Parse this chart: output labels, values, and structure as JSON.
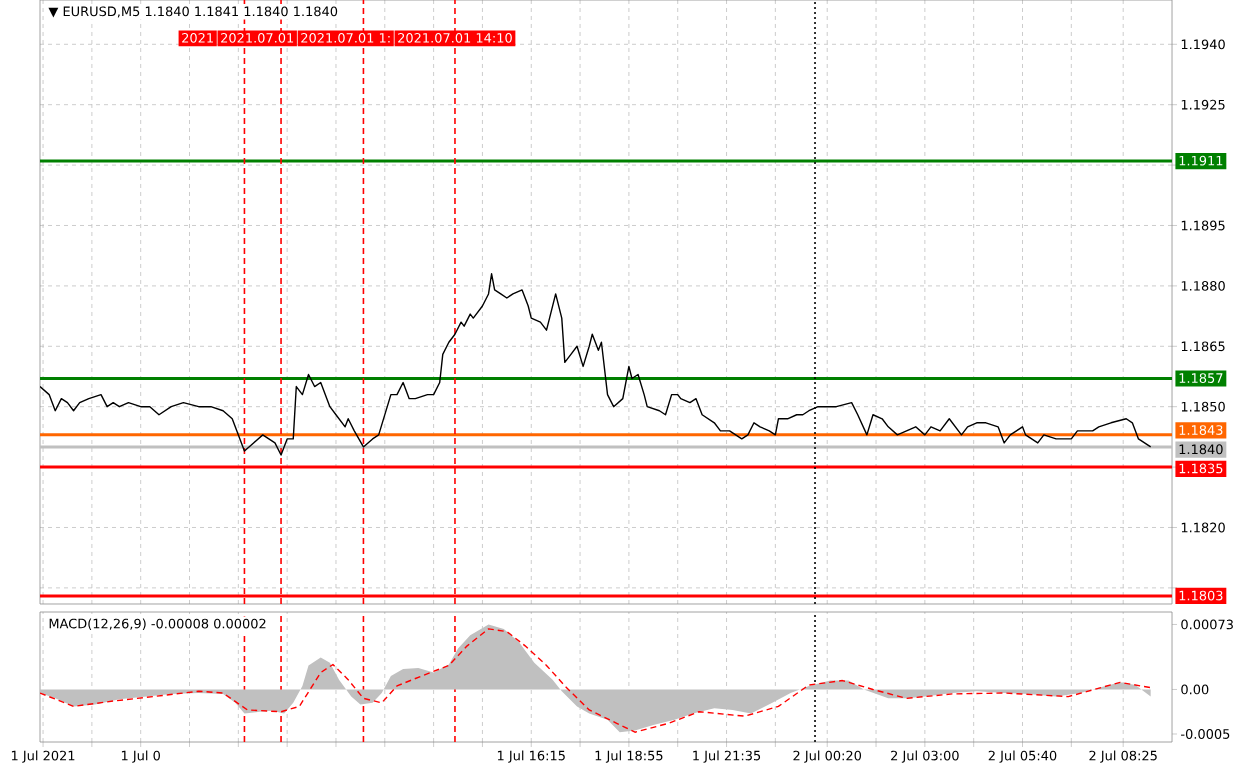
{
  "chart_data": [
    {
      "type": "line",
      "title": "▼ EURUSD,M5 1.1840 1.1841 1.1840 1.1840",
      "xlim": [
        "2021-07-01T02:50",
        "2021-07-02T09:45"
      ],
      "xticks": [
        {
          "value": "2021-07-01T02:55",
          "label": null
        },
        {
          "value": "2021-07-01T04:15",
          "label": null
        },
        {
          "value": "2021-07-01T05:35",
          "label": null
        },
        {
          "value": "2021-07-01T06:55",
          "label": null
        },
        {
          "value": "2021-07-01T08:15",
          "label": null
        },
        {
          "value": "2021-07-01T09:35",
          "label": null
        },
        {
          "value": "2021-07-01T10:55",
          "label": null
        },
        {
          "value": "2021-07-01T12:15",
          "label": null
        },
        {
          "value": "2021-07-01T13:35",
          "label": null
        },
        {
          "value": "2021-07-01T14:55",
          "label": null
        },
        {
          "value": "2021-07-01T16:15",
          "label": null
        },
        {
          "value": "2021-07-01T17:35",
          "label": null
        },
        {
          "value": "2021-07-01T18:55",
          "label": null
        },
        {
          "value": "2021-07-01T20:15",
          "label": null
        },
        {
          "value": "2021-07-01T21:35",
          "label": null
        },
        {
          "value": "2021-07-01T22:55",
          "label": null
        },
        {
          "value": "2021-07-02T00:20",
          "label": null
        },
        {
          "value": "2021-07-02T01:40",
          "label": null
        },
        {
          "value": "2021-07-02T03:00",
          "label": null
        },
        {
          "value": "2021-07-02T04:20",
          "label": null
        },
        {
          "value": "2021-07-02T05:40",
          "label": null
        },
        {
          "value": "2021-07-02T07:00",
          "label": null
        },
        {
          "value": "2021-07-02T08:25",
          "label": null
        }
      ],
      "ylim": [
        1.1801,
        1.1951
      ],
      "yticks": [
        {
          "value": 1.194,
          "label": "1.1940"
        },
        1.1925,
        {
          "value": 1.191,
          "label": null
        },
        1.1895,
        {
          "value": 1.188,
          "label": "1.1880"
        },
        1.1865,
        {
          "value": 1.185,
          "label": "1.1850"
        },
        {
          "value": 1.1835,
          "label": null
        },
        {
          "value": 1.182,
          "label": "1.1820"
        },
        {
          "value": 1.1805,
          "label": null
        }
      ],
      "grid": true,
      "tick_labels": "y",
      "x": [
        "2021-07-01T02:50",
        "2021-07-01T03:05",
        "2021-07-01T03:15",
        "2021-07-01T03:25",
        "2021-07-01T03:35",
        "2021-07-01T03:45",
        "2021-07-01T03:55",
        "2021-07-01T04:10",
        "2021-07-01T04:30",
        "2021-07-01T04:40",
        "2021-07-01T04:50",
        "2021-07-01T05:00",
        "2021-07-01T05:15",
        "2021-07-01T05:35",
        "2021-07-01T05:50",
        "2021-07-01T06:05",
        "2021-07-01T06:25",
        "2021-07-01T06:45",
        "2021-07-01T07:10",
        "2021-07-01T07:30",
        "2021-07-01T07:50",
        "2021-07-01T08:05",
        "2021-07-01T08:25",
        "2021-07-01T08:40",
        "2021-07-01T08:55",
        "2021-07-01T09:05",
        "2021-07-01T09:15",
        "2021-07-01T09:25",
        "2021-07-01T09:35",
        "2021-07-01T09:45",
        "2021-07-01T09:50",
        "2021-07-01T10:00",
        "2021-07-01T10:10",
        "2021-07-01T10:20",
        "2021-07-01T10:30",
        "2021-07-01T10:45",
        "2021-07-01T10:55",
        "2021-07-01T11:10",
        "2021-07-01T11:15",
        "2021-07-01T11:25",
        "2021-07-01T11:40",
        "2021-07-01T11:55",
        "2021-07-01T12:05",
        "2021-07-01T12:15",
        "2021-07-01T12:25",
        "2021-07-01T12:35",
        "2021-07-01T12:45",
        "2021-07-01T12:55",
        "2021-07-01T13:05",
        "2021-07-01T13:25",
        "2021-07-01T13:35",
        "2021-07-01T13:45",
        "2021-07-01T13:50",
        "2021-07-01T14:00",
        "2021-07-01T14:10",
        "2021-07-01T14:20",
        "2021-07-01T14:25",
        "2021-07-01T14:35",
        "2021-07-01T14:40",
        "2021-07-01T14:55",
        "2021-07-01T15:05",
        "2021-07-01T15:10",
        "2021-07-01T15:15",
        "2021-07-01T15:25",
        "2021-07-01T15:35",
        "2021-07-01T15:45",
        "2021-07-01T16:00",
        "2021-07-01T16:10",
        "2021-07-01T16:15",
        "2021-07-01T16:30",
        "2021-07-01T16:40",
        "2021-07-01T16:45",
        "2021-07-01T16:55",
        "2021-07-01T17:05",
        "2021-07-01T17:10",
        "2021-07-01T17:20",
        "2021-07-01T17:30",
        "2021-07-01T17:40",
        "2021-07-01T17:50",
        "2021-07-01T17:55",
        "2021-07-01T18:05",
        "2021-07-01T18:10",
        "2021-07-01T18:20",
        "2021-07-01T18:30",
        "2021-07-01T18:45",
        "2021-07-01T18:55",
        "2021-07-01T19:00",
        "2021-07-01T19:10",
        "2021-07-01T19:20",
        "2021-07-01T19:25",
        "2021-07-01T19:45",
        "2021-07-01T19:55",
        "2021-07-01T20:05",
        "2021-07-01T20:15",
        "2021-07-01T20:20",
        "2021-07-01T20:35",
        "2021-07-01T20:45",
        "2021-07-01T20:55",
        "2021-07-01T21:15",
        "2021-07-01T21:25",
        "2021-07-01T21:40",
        "2021-07-01T21:50",
        "2021-07-01T22:00",
        "2021-07-01T22:10",
        "2021-07-01T22:20",
        "2021-07-01T22:30",
        "2021-07-01T22:45",
        "2021-07-01T22:55",
        "2021-07-01T23:00",
        "2021-07-01T23:15",
        "2021-07-01T23:30",
        "2021-07-01T23:40",
        "2021-07-01T23:50",
        "2021-07-02T00:05",
        "2021-07-02T00:20",
        "2021-07-02T00:35",
        "2021-07-02T01:00",
        "2021-07-02T01:10",
        "2021-07-02T01:25",
        "2021-07-02T01:35",
        "2021-07-02T01:50",
        "2021-07-02T02:00",
        "2021-07-02T02:15",
        "2021-07-02T02:30",
        "2021-07-02T02:45",
        "2021-07-02T03:00",
        "2021-07-02T03:10",
        "2021-07-02T03:25",
        "2021-07-02T03:40",
        "2021-07-02T04:00",
        "2021-07-02T04:10",
        "2021-07-02T04:25",
        "2021-07-02T04:40",
        "2021-07-02T05:00",
        "2021-07-02T05:10",
        "2021-07-02T05:20",
        "2021-07-02T05:40",
        "2021-07-02T05:45",
        "2021-07-02T06:05",
        "2021-07-02T06:15",
        "2021-07-02T06:35",
        "2021-07-02T07:00",
        "2021-07-02T07:10",
        "2021-07-02T07:35",
        "2021-07-02T07:45",
        "2021-07-02T08:05",
        "2021-07-02T08:30",
        "2021-07-02T08:40",
        "2021-07-02T08:50",
        "2021-07-02T09:00",
        "2021-07-02T09:10"
      ],
      "series": [
        {
          "color": "#000000",
          "values": [
            1.1855,
            1.1853,
            1.1849,
            1.1852,
            1.1851,
            1.1849,
            1.1851,
            1.1852,
            1.1853,
            1.185,
            1.1851,
            1.185,
            1.1851,
            1.185,
            1.185,
            1.1848,
            1.185,
            1.1851,
            1.185,
            1.185,
            1.1849,
            1.1847,
            1.1839,
            1.1841,
            1.1843,
            1.1842,
            1.1841,
            1.1838,
            1.1842,
            1.1842,
            1.1855,
            1.1853,
            1.1858,
            1.1855,
            1.1856,
            1.185,
            1.1848,
            1.1845,
            1.1847,
            1.1844,
            1.184,
            1.1842,
            1.1843,
            1.1848,
            1.1853,
            1.1853,
            1.1856,
            1.1852,
            1.1852,
            1.1853,
            1.1853,
            1.1856,
            1.1863,
            1.1866,
            1.1868,
            1.1871,
            1.187,
            1.1873,
            1.1872,
            1.1875,
            1.1878,
            1.1883,
            1.1879,
            1.1878,
            1.1877,
            1.1878,
            1.1879,
            1.1875,
            1.1872,
            1.1871,
            1.1869,
            1.1872,
            1.1878,
            1.1872,
            1.1861,
            1.1863,
            1.1865,
            1.186,
            1.1865,
            1.1868,
            1.1864,
            1.1866,
            1.1853,
            1.185,
            1.1852,
            1.186,
            1.1857,
            1.1858,
            1.1853,
            1.185,
            1.1849,
            1.1848,
            1.1853,
            1.1853,
            1.1852,
            1.1851,
            1.1852,
            1.1848,
            1.1846,
            1.1844,
            1.1844,
            1.1843,
            1.1842,
            1.1843,
            1.1846,
            1.1845,
            1.1844,
            1.1843,
            1.1847,
            1.1847,
            1.1848,
            1.1848,
            1.1849,
            1.185,
            1.185,
            1.185,
            1.1851,
            1.1848,
            1.1843,
            1.1848,
            1.1847,
            1.1845,
            1.1843,
            1.1844,
            1.1845,
            1.1843,
            1.1845,
            1.1844,
            1.1847,
            1.1843,
            1.1845,
            1.1846,
            1.1846,
            1.1845,
            1.1841,
            1.1843,
            1.1845,
            1.1843,
            1.1841,
            1.1843,
            1.1842,
            1.1842,
            1.1844,
            1.1844,
            1.1845,
            1.1846,
            1.1847,
            1.1846,
            1.1842,
            1.1841,
            1.184
          ]
        }
      ],
      "ref_lines": [
        {
          "axis": "y",
          "value": 1.1911,
          "label": "1.1911",
          "color": "#008000"
        },
        {
          "axis": "y",
          "value": 1.1857,
          "label": "1.1857",
          "color": "#008000"
        },
        {
          "axis": "y",
          "value": 1.1843,
          "label": "1.1843",
          "color": "#ff6600"
        },
        {
          "axis": "y",
          "value": 1.184,
          "label": "1.1840",
          "color": "#c0c0c0"
        },
        {
          "axis": "y",
          "value": 1.1835,
          "label": "1.1835",
          "color": "#ff0000"
        },
        {
          "axis": "y",
          "value": 1.1803,
          "label": "1.1803",
          "color": "#ff0000"
        },
        {
          "axis": "x",
          "value": "2021-07-01T08:25",
          "label": "2021",
          "color": "#ff0000",
          "line_style": "dashed"
        },
        {
          "axis": "x",
          "value": "2021-07-01T09:25",
          "label": "2021.07.01",
          "color": "#ff0000",
          "line_style": "dashed"
        },
        {
          "axis": "x",
          "value": "2021-07-01T11:40",
          "label": "2021.07.01 1:",
          "color": "#ff0000",
          "line_style": "dashed"
        },
        {
          "axis": "x",
          "value": "2021-07-01T14:10",
          "label": "2021.07.01 14:10",
          "color": "#ff0000",
          "line_style": "dashed"
        },
        {
          "axis": "x",
          "value": "2021-07-02T00:00",
          "color": "#000000",
          "line_style": "dotted"
        }
      ]
    },
    {
      "type": "area",
      "title": "MACD(12,26,9) -0.00008 0.00002",
      "xlim": [
        "2021-07-01T02:50",
        "2021-07-02T09:45"
      ],
      "xticks": [
        {
          "value": "2021-07-01T02:55",
          "label": "1 Jul 2021"
        },
        {
          "value": "2021-07-01T04:15",
          "label": null
        },
        {
          "value": "2021-07-01T05:35",
          "label": "1 Jul 0"
        },
        {
          "value": "2021-07-01T06:55",
          "label": null
        },
        {
          "value": "2021-07-01T08:15",
          "label": null
        },
        {
          "value": "2021-07-01T09:35",
          "label": null
        },
        {
          "value": "2021-07-01T10:55",
          "label": null
        },
        {
          "value": "2021-07-01T12:15",
          "label": null
        },
        {
          "value": "2021-07-01T13:35",
          "label": null
        },
        {
          "value": "2021-07-01T14:55",
          "label": null
        },
        {
          "value": "2021-07-01T16:15",
          "label": "1 Jul 16:15"
        },
        {
          "value": "2021-07-01T17:35",
          "label": null
        },
        {
          "value": "2021-07-01T18:55",
          "label": "1 Jul 18:55"
        },
        {
          "value": "2021-07-01T20:15",
          "label": null
        },
        {
          "value": "2021-07-01T21:35",
          "label": "1 Jul 21:35"
        },
        {
          "value": "2021-07-01T22:55",
          "label": null
        },
        {
          "value": "2021-07-02T00:20",
          "label": "2 Jul 00:20"
        },
        {
          "value": "2021-07-02T01:40",
          "label": null
        },
        {
          "value": "2021-07-02T03:00",
          "label": "2 Jul 03:00"
        },
        {
          "value": "2021-07-02T04:20",
          "label": null
        },
        {
          "value": "2021-07-02T05:40",
          "label": "2 Jul 05:40"
        },
        {
          "value": "2021-07-02T07:00",
          "label": null
        },
        {
          "value": "2021-07-02T08:25",
          "label": "2 Jul 08:25"
        }
      ],
      "ylim": [
        -0.00059,
        0.00087
      ],
      "yticks": [
        0.00073,
        {
          "value": 0,
          "label": "0.00"
        },
        -0.0005
      ],
      "grid": "x",
      "series": [
        {
          "color": "#c0c0c0",
          "x": [
            "2021-07-01T02:50",
            "2021-07-01T03:15",
            "2021-07-01T03:45",
            "2021-07-01T04:20",
            "2021-07-01T05:00",
            "2021-07-01T05:45",
            "2021-07-01T06:25",
            "2021-07-01T07:10",
            "2021-07-01T07:50",
            "2021-07-01T08:10",
            "2021-07-01T08:25",
            "2021-07-01T08:50",
            "2021-07-01T09:10",
            "2021-07-01T09:30",
            "2021-07-01T09:45",
            "2021-07-01T10:00",
            "2021-07-01T10:10",
            "2021-07-01T10:30",
            "2021-07-01T10:45",
            "2021-07-01T11:00",
            "2021-07-01T11:20",
            "2021-07-01T11:35",
            "2021-07-01T11:55",
            "2021-07-01T12:10",
            "2021-07-01T12:25",
            "2021-07-01T12:45",
            "2021-07-01T13:10",
            "2021-07-01T13:35",
            "2021-07-01T14:00",
            "2021-07-01T14:15",
            "2021-07-01T14:35",
            "2021-07-01T15:05",
            "2021-07-01T15:30",
            "2021-07-01T15:55",
            "2021-07-01T16:20",
            "2021-07-01T16:50",
            "2021-07-01T17:05",
            "2021-07-01T17:30",
            "2021-07-01T17:50",
            "2021-07-01T18:20",
            "2021-07-01T18:40",
            "2021-07-01T19:05",
            "2021-07-01T19:35",
            "2021-07-01T20:10",
            "2021-07-01T20:40",
            "2021-07-01T21:15",
            "2021-07-01T21:45",
            "2021-07-01T22:15",
            "2021-07-01T22:50",
            "2021-07-01T23:20",
            "2021-07-01T23:50",
            "2021-07-02T00:25",
            "2021-07-02T00:55",
            "2021-07-02T01:20",
            "2021-07-02T02:00",
            "2021-07-02T02:30",
            "2021-07-02T03:00",
            "2021-07-02T03:45",
            "2021-07-02T04:25",
            "2021-07-02T05:10",
            "2021-07-02T05:50",
            "2021-07-02T06:35",
            "2021-07-02T07:15",
            "2021-07-02T07:45",
            "2021-07-02T08:20",
            "2021-07-02T08:45",
            "2021-07-02T09:10"
          ],
          "values": [
            -4e-05,
            -0.0001,
            -0.00019,
            -0.00017,
            -0.00011,
            -8e-05,
            -5e-05,
            -4e-05,
            -5e-05,
            -0.00015,
            -0.00027,
            -0.00025,
            -0.00024,
            -0.00027,
            -0.00015,
            4e-05,
            0.00027,
            0.00036,
            0.0003,
            0.00011,
            -8e-05,
            -0.00017,
            -0.00015,
            -4e-05,
            0.00015,
            0.00023,
            0.00024,
            0.00019,
            0.00028,
            0.00046,
            0.00061,
            0.00073,
            0.00068,
            0.00053,
            0.0003,
            0.00011,
            -2e-05,
            -0.00019,
            -0.00027,
            -0.00034,
            -0.00048,
            -0.00046,
            -0.0004,
            -0.00034,
            -0.00027,
            -0.00021,
            -0.00023,
            -0.00027,
            -0.00015,
            -4e-05,
            4e-05,
            0.0001,
            0.0001,
            0,
            -0.0001,
            -0.0001,
            -8e-05,
            -4e-05,
            -2e-05,
            -4e-05,
            -5e-05,
            -8e-05,
            -4e-05,
            2e-05,
            8e-05,
            5e-05,
            -8e-05
          ]
        },
        {
          "type": "line",
          "color": "#ff0000",
          "line_style": "dashed",
          "x": [
            "2021-07-01T02:50",
            "2021-07-01T03:45",
            "2021-07-01T04:50",
            "2021-07-01T05:55",
            "2021-07-01T07:10",
            "2021-07-01T07:50",
            "2021-07-01T08:30",
            "2021-07-01T09:25",
            "2021-07-01T09:55",
            "2021-07-01T10:30",
            "2021-07-01T10:50",
            "2021-07-01T11:15",
            "2021-07-01T11:40",
            "2021-07-01T12:10",
            "2021-07-01T12:35",
            "2021-07-01T13:15",
            "2021-07-01T14:00",
            "2021-07-01T14:30",
            "2021-07-01T15:05",
            "2021-07-01T15:35",
            "2021-07-01T16:05",
            "2021-07-01T16:40",
            "2021-07-01T17:10",
            "2021-07-01T17:50",
            "2021-07-01T18:35",
            "2021-07-01T19:05",
            "2021-07-01T20:00",
            "2021-07-01T20:50",
            "2021-07-01T22:05",
            "2021-07-01T23:00",
            "2021-07-01T23:50",
            "2021-07-02T00:45",
            "2021-07-02T01:35",
            "2021-07-02T02:30",
            "2021-07-02T03:45",
            "2021-07-02T05:10",
            "2021-07-02T06:55",
            "2021-07-02T08:20",
            "2021-07-02T09:10"
          ],
          "values": [
            -4e-05,
            -0.00019,
            -0.00013,
            -8e-05,
            -2e-05,
            -4e-05,
            -0.00023,
            -0.00025,
            -0.00019,
            0.00019,
            0.00028,
            0.00011,
            -0.0001,
            -0.00015,
            4e-05,
            0.00015,
            0.00027,
            0.00049,
            0.00068,
            0.00065,
            0.00049,
            0.00027,
            4e-05,
            -0.00023,
            -0.00038,
            -0.00048,
            -0.00038,
            -0.00025,
            -0.0003,
            -0.00019,
            5e-05,
            0.0001,
            0,
            -0.0001,
            -5e-05,
            -4e-05,
            -8e-05,
            8e-05,
            2e-05
          ]
        }
      ],
      "ref_lines": [
        {
          "axis": "x",
          "value": "2021-07-01T08:25",
          "color": "#ff0000",
          "line_style": "dashed"
        },
        {
          "axis": "x",
          "value": "2021-07-01T09:25",
          "color": "#ff0000",
          "line_style": "dashed"
        },
        {
          "axis": "x",
          "value": "2021-07-01T11:40",
          "color": "#ff0000",
          "line_style": "dashed"
        },
        {
          "axis": "x",
          "value": "2021-07-01T14:10",
          "color": "#ff0000",
          "line_style": "dashed"
        },
        {
          "axis": "x",
          "value": "2021-07-02T00:00",
          "color": "#000000",
          "line_style": "dotted"
        }
      ]
    }
  ]
}
